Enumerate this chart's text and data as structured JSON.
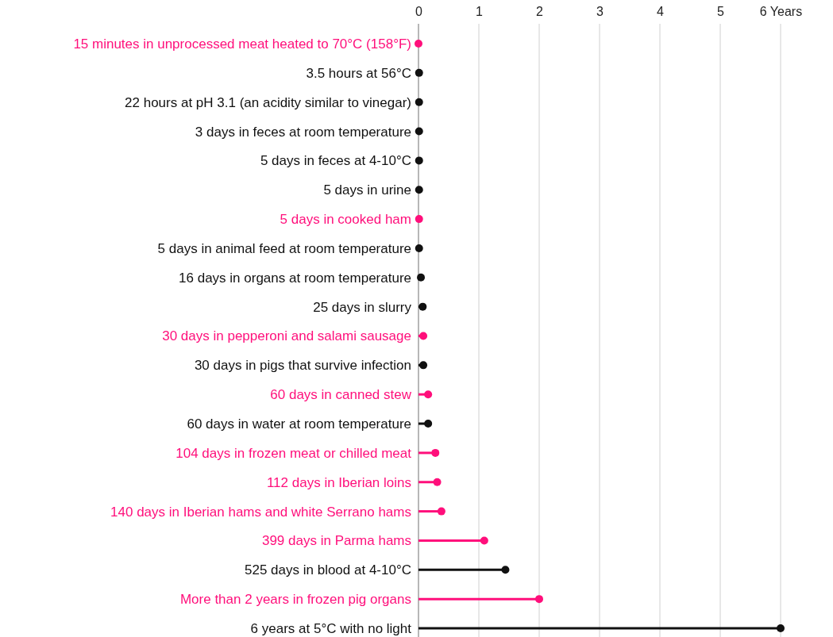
{
  "chart_data": {
    "type": "lollipop",
    "orientation": "horizontal",
    "categories": [
      "15 minutes in unprocessed meat heated to 70°C (158°F)",
      "3.5 hours at 56°C",
      "22 hours at pH 3.1 (an acidity similar to vinegar)",
      "3 days in feces at room temperature",
      "5 days in feces at 4-10°C",
      "5 days in urine",
      "5 days in cooked ham",
      "5 days in animal feed at room temperature",
      "16 days in organs at room temperature",
      "25 days in slurry",
      "30 days in pepperoni and salami sausage",
      "30 days in pigs that survive infection",
      "60 days in canned stew",
      "60 days in water at room temperature",
      "104 days in frozen meat or chilled meat",
      "112 days in Iberian loins",
      "140 days in Iberian hams and white Serrano hams",
      "399 days in Parma hams",
      "525 days in blood at 4-10°C",
      "More than 2 years in frozen pig organs",
      "6 years at 5°C with no light"
    ],
    "values": [
      0,
      0.01,
      0.01,
      0.01,
      0.01,
      0.01,
      0.01,
      0.01,
      0.04,
      0.07,
      0.08,
      0.08,
      0.16,
      0.16,
      0.28,
      0.31,
      0.38,
      1.09,
      1.44,
      2,
      6
    ],
    "colors": [
      "#ff0f7b",
      "#111111",
      "#111111",
      "#111111",
      "#111111",
      "#111111",
      "#ff0f7b",
      "#111111",
      "#111111",
      "#111111",
      "#ff0f7b",
      "#111111",
      "#ff0f7b",
      "#111111",
      "#ff0f7b",
      "#ff0f7b",
      "#ff0f7b",
      "#ff0f7b",
      "#111111",
      "#ff0f7b",
      "#111111"
    ],
    "xlim": [
      0,
      6
    ],
    "xticks": [
      0,
      1,
      2,
      3,
      4,
      5,
      {
        "value": 6,
        "label": "6 Years"
      }
    ],
    "grid": "x",
    "marker": "circle"
  }
}
